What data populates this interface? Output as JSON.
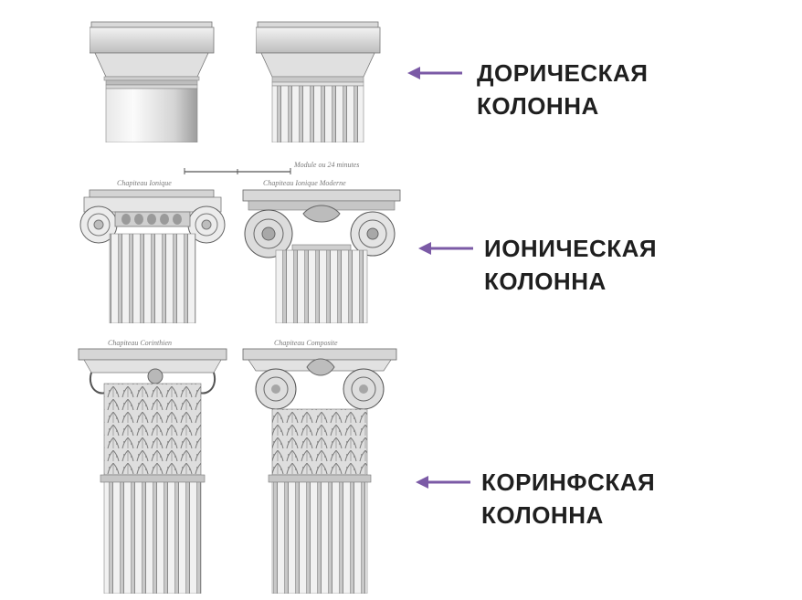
{
  "orders": [
    {
      "id": "doric",
      "line1": "ДОРИЧЕСКАЯ",
      "line2": "КОЛОННА",
      "arrow_color": "#7b5aa6"
    },
    {
      "id": "ionic",
      "line1": "ИОНИЧЕСКАЯ",
      "line2": "КОЛОННА",
      "arrow_color": "#7b5aa6"
    },
    {
      "id": "corinthian",
      "line1": "КОРИНФСКАЯ",
      "line2": "КОЛОННА",
      "arrow_color": "#7b5aa6"
    }
  ],
  "engraving_captions": {
    "ionic_left": "Chapiteau Ionique",
    "ionic_right": "Chapiteau Ionique Moderne",
    "scale": "Module ou 24 minutes",
    "corinthian_left": "Chapiteau Corinthien",
    "corinthian_right": "Chapiteau Composite"
  },
  "colors": {
    "engraving_ink": "#6b6b6b",
    "engraving_shade": "#bdbdbd",
    "text": "#1f1f1f"
  }
}
